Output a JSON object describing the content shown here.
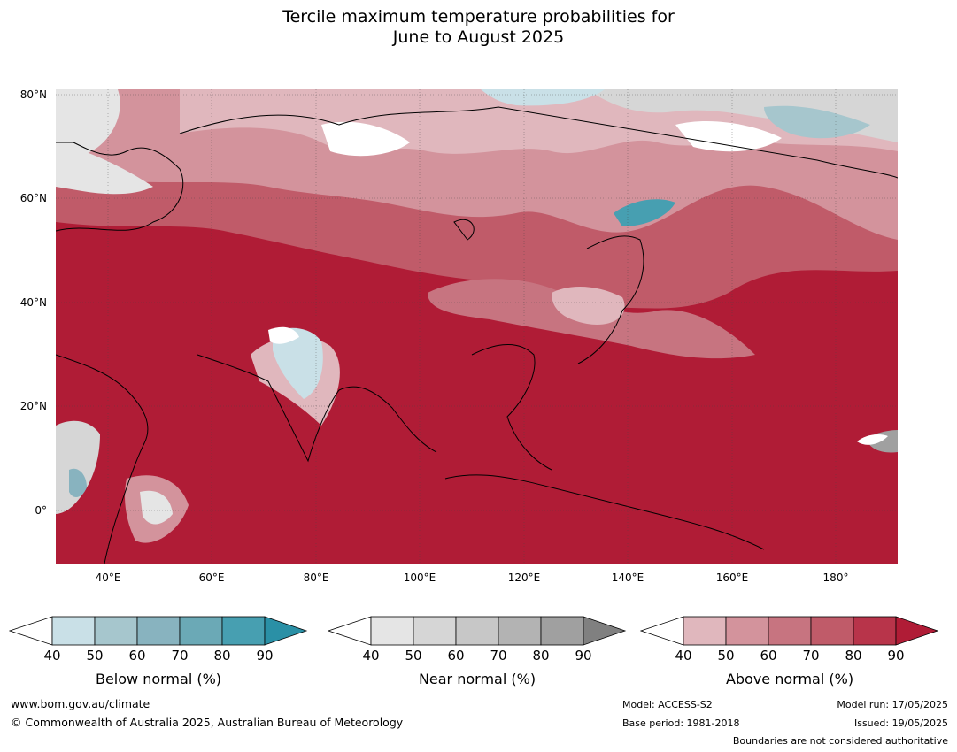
{
  "title": {
    "line1": "Tercile maximum temperature probabilities for",
    "line2": "June to August 2025"
  },
  "map": {
    "lat_labels": [
      "80°N",
      "60°N",
      "40°N",
      "20°N",
      "0°"
    ],
    "lon_labels": [
      "40°E",
      "60°E",
      "80°E",
      "100°E",
      "120°E",
      "140°E",
      "160°E",
      "180°"
    ],
    "extent": {
      "lon_min": 30,
      "lon_max": 192,
      "lat_min": -10,
      "lat_max": 81
    }
  },
  "legends": {
    "below": {
      "label": "Below normal (%)",
      "ticks": [
        "40",
        "50",
        "60",
        "70",
        "80",
        "90"
      ],
      "colors": [
        "#c9e0e7",
        "#a6c6cd",
        "#88b3bf",
        "#6ba9b6",
        "#479fb1",
        "#2a90a6"
      ]
    },
    "near": {
      "label": "Near normal (%)",
      "ticks": [
        "40",
        "50",
        "60",
        "70",
        "80",
        "90"
      ],
      "colors": [
        "#e5e5e5",
        "#d6d6d6",
        "#c7c7c7",
        "#b3b3b3",
        "#a0a0a0",
        "#808080"
      ]
    },
    "above": {
      "label": "Above normal (%)",
      "ticks": [
        "40",
        "50",
        "60",
        "70",
        "80",
        "90"
      ],
      "colors": [
        "#e0b7bd",
        "#d3939c",
        "#c77480",
        "#c05b69",
        "#b8344a",
        "#b01c36"
      ]
    }
  },
  "footer": {
    "website": "www.bom.gov.au/climate",
    "copyright": "© Commonwealth of Australia 2025, Australian Bureau of Meteorology",
    "model": "Model: ACCESS-S2",
    "base_period": "Base period: 1981-2018",
    "model_run": "Model run: 17/05/2025",
    "issued": "Issued: 19/05/2025",
    "disclaimer": "Boundaries are not considered authoritative"
  }
}
